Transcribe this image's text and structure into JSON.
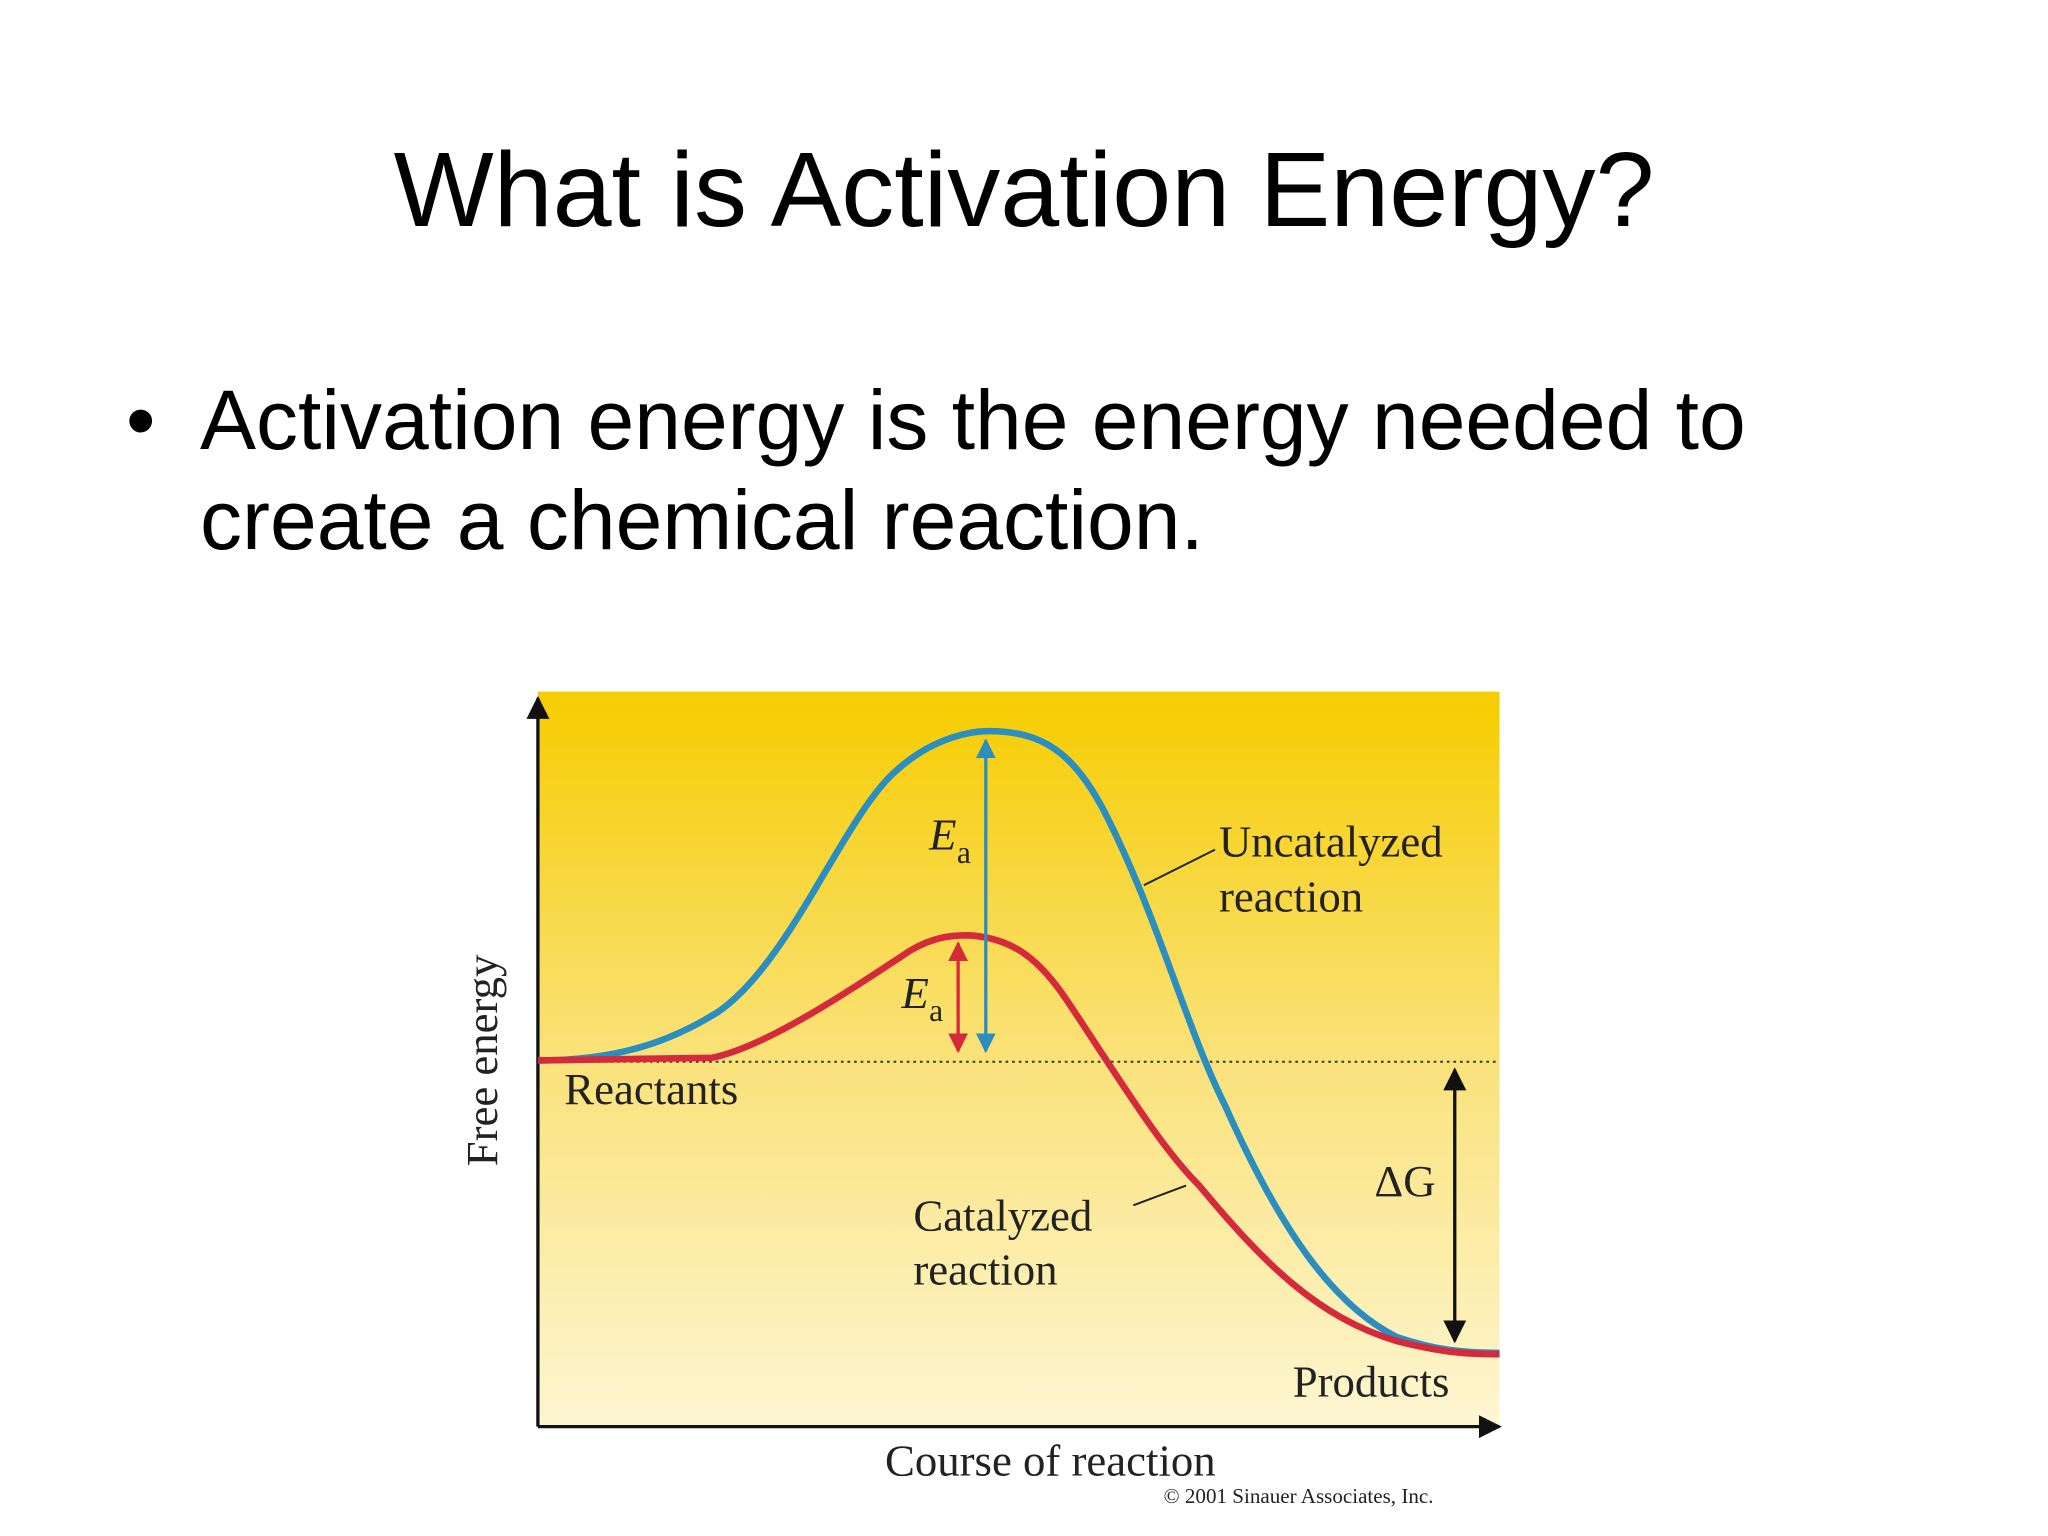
{
  "title": "What is Activation Energy?",
  "bullets": [
    "Activation energy is the energy needed to create a chemical reaction."
  ],
  "figure": {
    "y_axis_label": "Free energy",
    "x_axis_label": "Course of reaction",
    "uncatalyzed_label": [
      "Uncatalyzed",
      "reaction"
    ],
    "catalyzed_label": [
      "Catalyzed",
      "reaction"
    ],
    "reactants_label": "Reactants",
    "products_label": "Products",
    "delta_g_label": "ΔG",
    "uncatalyzed_ea": {
      "symbol": "E",
      "subscript": "a"
    },
    "catalyzed_ea": {
      "symbol": "E",
      "subscript": "a"
    },
    "copyright": "© 2001 Sinauer Associates, Inc."
  }
}
